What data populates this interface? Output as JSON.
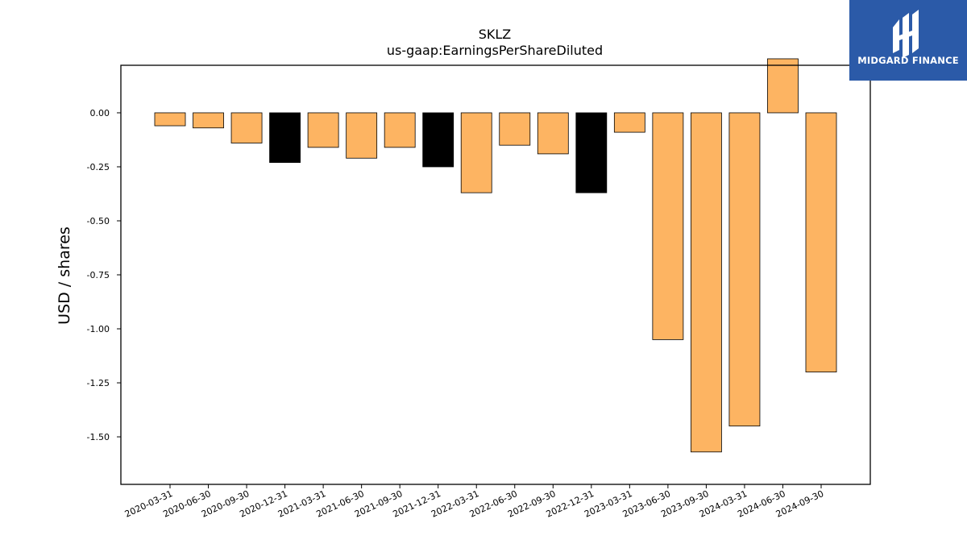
{
  "chart_data": {
    "type": "bar",
    "title": "SKLZ",
    "subtitle": "us-gaap:EarningsPerShareDiluted",
    "xlabel": "",
    "ylabel": "USD / shares",
    "categories": [
      "2020-03-31",
      "2020-06-30",
      "2020-09-30",
      "2020-12-31",
      "2021-03-31",
      "2021-06-30",
      "2021-09-30",
      "2021-12-31",
      "2022-03-31",
      "2022-06-30",
      "2022-09-30",
      "2022-12-31",
      "2023-03-31",
      "2023-06-30",
      "2023-09-30",
      "2024-03-31",
      "2024-06-30",
      "2024-09-30"
    ],
    "values": [
      -0.06,
      -0.07,
      -0.14,
      -0.23,
      -0.16,
      -0.21,
      -0.16,
      -0.25,
      -0.37,
      -0.15,
      -0.19,
      -0.37,
      -0.09,
      -1.05,
      -1.57,
      -1.45,
      0.25,
      -1.2
    ],
    "highlighted": [
      false,
      false,
      false,
      true,
      false,
      false,
      false,
      true,
      false,
      false,
      false,
      true,
      false,
      false,
      false,
      false,
      false,
      false
    ],
    "ylim": [
      -1.72,
      0.22
    ],
    "yticks": [
      0.0,
      -0.25,
      -0.5,
      -0.75,
      -1.0,
      -1.25,
      -1.5
    ],
    "ytick_labels": [
      "0.00",
      "-0.25",
      "-0.50",
      "-0.75",
      "-1.00",
      "-1.25",
      "-1.50"
    ],
    "grid": false,
    "colors": {
      "bar": "#fdb462",
      "highlight": "#000000",
      "edge": "#000000"
    }
  },
  "logo": {
    "text": "MIDGARD FINANCE",
    "icon": "midgard-logo-icon",
    "color": "#2b5aa8"
  }
}
